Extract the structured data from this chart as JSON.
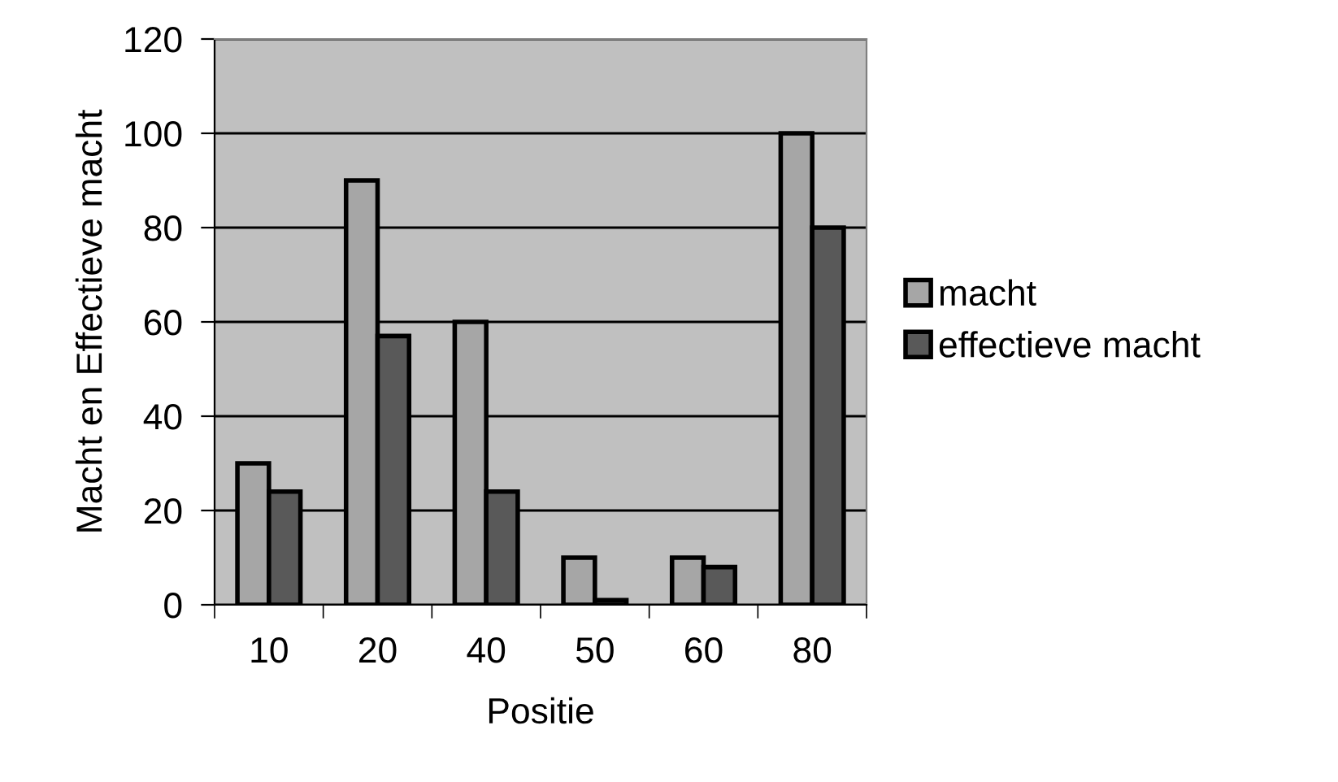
{
  "chart_data": {
    "type": "bar",
    "xlabel": "Positie",
    "ylabel": "Macht en Effectieve macht",
    "categories": [
      "10",
      "20",
      "40",
      "50",
      "60",
      "80"
    ],
    "series": [
      {
        "name": "macht",
        "color": "#a6a6a6",
        "values": [
          30,
          90,
          60,
          10,
          10,
          100
        ]
      },
      {
        "name": "effectieve macht",
        "color": "#595959",
        "values": [
          24,
          57,
          24,
          1,
          8,
          80
        ]
      }
    ],
    "ylim": [
      0,
      120
    ],
    "yticks": [
      0,
      20,
      40,
      60,
      80,
      100,
      120
    ],
    "grid": "y",
    "legend": "right"
  }
}
